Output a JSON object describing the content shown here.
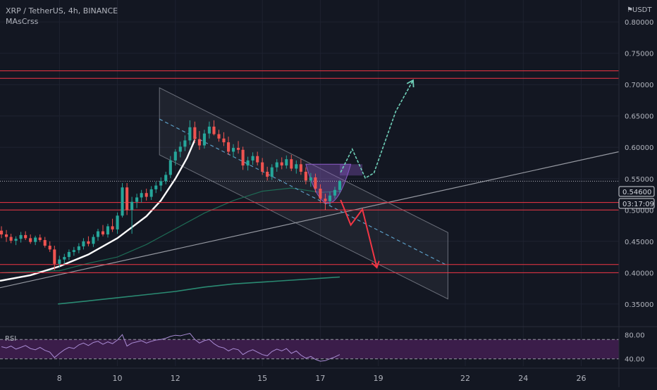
{
  "header": {
    "symbol_line": "XRP / TetherUS, 4h, BINANCE",
    "indicator_label": "MAsCrss",
    "rsi_label": "RSI"
  },
  "price_axis": {
    "currency": "USDT",
    "currency_icon": "flag-icon",
    "current_price": "0.54600",
    "countdown": "03:17:09"
  },
  "colors": {
    "background": "#131722",
    "grid": "#1e2230",
    "up": "#26a69a",
    "down": "#ef5350",
    "level_line": "#f23645",
    "projection_up": "#6fcfb8",
    "projection_down": "#f23645",
    "curve": "#ffffff",
    "rsi_fill": "#3b1d4a"
  },
  "chart_data": [
    {
      "type": "candlestick",
      "title": "XRP / TetherUS, 4h, BINANCE",
      "indicator": "MAsCrss",
      "y_ticks": [
        "0.80000",
        "0.75000",
        "0.70000",
        "0.65000",
        "0.60000",
        "0.55000",
        "0.50000",
        "0.45000",
        "0.40000",
        "0.35000"
      ],
      "x_ticks": [
        "8",
        "10",
        "12",
        "15",
        "17",
        "19",
        "22",
        "24",
        "26"
      ],
      "ylim": [
        0.315,
        0.835
      ],
      "x_range_days": [
        5.95,
        27.3
      ],
      "candle_interval_days": 0.1667,
      "last_price": 0.546,
      "candles": [
        [
          6.0,
          0.467,
          0.474,
          0.455,
          0.461
        ],
        [
          6.17,
          0.461,
          0.468,
          0.449,
          0.457
        ],
        [
          6.33,
          0.457,
          0.462,
          0.447,
          0.451
        ],
        [
          6.5,
          0.451,
          0.458,
          0.444,
          0.454
        ],
        [
          6.67,
          0.454,
          0.465,
          0.448,
          0.46
        ],
        [
          6.83,
          0.46,
          0.466,
          0.452,
          0.455
        ],
        [
          7.0,
          0.455,
          0.461,
          0.446,
          0.449
        ],
        [
          7.17,
          0.449,
          0.459,
          0.444,
          0.456
        ],
        [
          7.33,
          0.456,
          0.461,
          0.449,
          0.452
        ],
        [
          7.5,
          0.452,
          0.457,
          0.44,
          0.443
        ],
        [
          7.67,
          0.443,
          0.45,
          0.433,
          0.437
        ],
        [
          7.83,
          0.437,
          0.443,
          0.404,
          0.414
        ],
        [
          8.0,
          0.414,
          0.427,
          0.408,
          0.421
        ],
        [
          8.17,
          0.421,
          0.43,
          0.414,
          0.425
        ],
        [
          8.33,
          0.425,
          0.437,
          0.42,
          0.433
        ],
        [
          8.5,
          0.433,
          0.441,
          0.427,
          0.436
        ],
        [
          8.67,
          0.436,
          0.447,
          0.431,
          0.442
        ],
        [
          8.83,
          0.442,
          0.455,
          0.437,
          0.45
        ],
        [
          9.0,
          0.45,
          0.458,
          0.442,
          0.446
        ],
        [
          9.17,
          0.446,
          0.461,
          0.441,
          0.457
        ],
        [
          9.33,
          0.457,
          0.47,
          0.451,
          0.466
        ],
        [
          9.5,
          0.466,
          0.476,
          0.458,
          0.461
        ],
        [
          9.67,
          0.461,
          0.478,
          0.456,
          0.474
        ],
        [
          9.83,
          0.474,
          0.486,
          0.465,
          0.469
        ],
        [
          10.0,
          0.469,
          0.496,
          0.462,
          0.491
        ],
        [
          10.17,
          0.491,
          0.543,
          0.488,
          0.536
        ],
        [
          10.33,
          0.536,
          0.543,
          0.492,
          0.5
        ],
        [
          10.5,
          0.5,
          0.521,
          0.462,
          0.513
        ],
        [
          10.67,
          0.513,
          0.526,
          0.503,
          0.52
        ],
        [
          10.83,
          0.52,
          0.532,
          0.512,
          0.527
        ],
        [
          11.0,
          0.527,
          0.534,
          0.515,
          0.521
        ],
        [
          11.17,
          0.521,
          0.538,
          0.516,
          0.533
        ],
        [
          11.33,
          0.533,
          0.545,
          0.527,
          0.539
        ],
        [
          11.5,
          0.539,
          0.552,
          0.53,
          0.546
        ],
        [
          11.67,
          0.546,
          0.561,
          0.541,
          0.556
        ],
        [
          11.83,
          0.556,
          0.586,
          0.551,
          0.579
        ],
        [
          12.0,
          0.579,
          0.597,
          0.571,
          0.593
        ],
        [
          12.17,
          0.593,
          0.609,
          0.584,
          0.601
        ],
        [
          12.33,
          0.601,
          0.619,
          0.594,
          0.611
        ],
        [
          12.5,
          0.611,
          0.643,
          0.604,
          0.632
        ],
        [
          12.67,
          0.632,
          0.641,
          0.607,
          0.613
        ],
        [
          12.83,
          0.613,
          0.626,
          0.596,
          0.603
        ],
        [
          13.0,
          0.603,
          0.628,
          0.598,
          0.622
        ],
        [
          13.17,
          0.622,
          0.641,
          0.614,
          0.633
        ],
        [
          13.33,
          0.633,
          0.643,
          0.619,
          0.621
        ],
        [
          13.5,
          0.621,
          0.628,
          0.609,
          0.614
        ],
        [
          13.67,
          0.614,
          0.624,
          0.602,
          0.608
        ],
        [
          13.83,
          0.608,
          0.617,
          0.588,
          0.593
        ],
        [
          14.0,
          0.593,
          0.605,
          0.584,
          0.599
        ],
        [
          14.17,
          0.599,
          0.61,
          0.59,
          0.596
        ],
        [
          14.33,
          0.596,
          0.601,
          0.564,
          0.571
        ],
        [
          14.5,
          0.571,
          0.585,
          0.563,
          0.579
        ],
        [
          14.67,
          0.579,
          0.592,
          0.572,
          0.586
        ],
        [
          14.83,
          0.586,
          0.593,
          0.571,
          0.576
        ],
        [
          15.0,
          0.576,
          0.583,
          0.556,
          0.561
        ],
        [
          15.17,
          0.561,
          0.569,
          0.547,
          0.553
        ],
        [
          15.33,
          0.553,
          0.573,
          0.548,
          0.568
        ],
        [
          15.5,
          0.568,
          0.581,
          0.561,
          0.576
        ],
        [
          15.67,
          0.576,
          0.584,
          0.565,
          0.571
        ],
        [
          15.83,
          0.571,
          0.587,
          0.566,
          0.581
        ],
        [
          16.0,
          0.581,
          0.588,
          0.562,
          0.566
        ],
        [
          16.17,
          0.566,
          0.579,
          0.558,
          0.573
        ],
        [
          16.33,
          0.573,
          0.581,
          0.556,
          0.561
        ],
        [
          16.5,
          0.561,
          0.568,
          0.541,
          0.547
        ],
        [
          16.67,
          0.547,
          0.559,
          0.537,
          0.552
        ],
        [
          16.83,
          0.552,
          0.558,
          0.528,
          0.534
        ],
        [
          17.0,
          0.534,
          0.541,
          0.511,
          0.518
        ],
        [
          17.17,
          0.518,
          0.526,
          0.5,
          0.514
        ],
        [
          17.33,
          0.514,
          0.529,
          0.507,
          0.523
        ],
        [
          17.5,
          0.523,
          0.537,
          0.518,
          0.532
        ],
        [
          17.67,
          0.532,
          0.548,
          0.527,
          0.546
        ]
      ],
      "lines": [
        {
          "name": "moving-average-short",
          "color": "#1e6b55",
          "points": [
            [
              6.0,
              0.4
            ],
            [
              7.0,
              0.402
            ],
            [
              8.0,
              0.403
            ],
            [
              9.0,
              0.415
            ],
            [
              10.0,
              0.425
            ],
            [
              11.0,
              0.445
            ],
            [
              12.0,
              0.47
            ],
            [
              13.0,
              0.495
            ],
            [
              14.0,
              0.515
            ],
            [
              15.0,
              0.53
            ],
            [
              16.0,
              0.535
            ],
            [
              17.0,
              0.528
            ],
            [
              17.67,
              0.53
            ]
          ]
        },
        {
          "name": "moving-average-long",
          "color": "#2a8a72",
          "points": [
            [
              7.95,
              0.35
            ],
            [
              9.0,
              0.355
            ],
            [
              10.0,
              0.36
            ],
            [
              11.0,
              0.365
            ],
            [
              12.0,
              0.37
            ],
            [
              13.0,
              0.377
            ],
            [
              14.0,
              0.382
            ],
            [
              15.0,
              0.385
            ],
            [
              16.0,
              0.388
            ],
            [
              17.0,
              0.391
            ],
            [
              17.67,
              0.393
            ]
          ]
        },
        {
          "name": "parabolic-curve",
          "color": "#ffffff",
          "points": [
            [
              5.95,
              0.387
            ],
            [
              7.0,
              0.396
            ],
            [
              8.0,
              0.41
            ],
            [
              9.0,
              0.429
            ],
            [
              10.0,
              0.455
            ],
            [
              11.0,
              0.49
            ],
            [
              11.5,
              0.515
            ],
            [
              12.0,
              0.55
            ],
            [
              12.4,
              0.583
            ],
            [
              12.67,
              0.612
            ]
          ]
        },
        {
          "name": "ascending-trendline",
          "color": "#9598a1",
          "points": [
            [
              5.95,
              0.376
            ],
            [
              27.3,
              0.593
            ]
          ]
        },
        {
          "name": "channel-midline",
          "color": "#5b9cc4",
          "points": [
            [
              11.45,
              0.645
            ],
            [
              21.4,
              0.411
            ]
          ]
        }
      ],
      "channel": {
        "top": [
          [
            11.45,
            0.695
          ],
          [
            21.4,
            0.464
          ]
        ],
        "bottom": [
          [
            11.45,
            0.588
          ],
          [
            21.4,
            0.358
          ]
        ]
      },
      "horizontal_levels": [
        0.722,
        0.71,
        0.512,
        0.5,
        0.413,
        0.4
      ],
      "cup": {
        "x": [
          16.5,
          18.05
        ],
        "y": [
          0.509,
          0.573
        ]
      },
      "cup_fill": {
        "x": [
          17.67,
          18.45
        ],
        "y": [
          0.555,
          0.573
        ]
      },
      "projection_up": {
        "points": [
          [
            17.7,
            0.56
          ],
          [
            18.1,
            0.597
          ],
          [
            18.55,
            0.551
          ],
          [
            18.85,
            0.559
          ],
          [
            19.6,
            0.657
          ],
          [
            20.2,
            0.707
          ]
        ]
      },
      "projection_down": {
        "points": [
          [
            17.7,
            0.516
          ],
          [
            18.05,
            0.476
          ],
          [
            18.45,
            0.501
          ],
          [
            18.95,
            0.408
          ]
        ]
      }
    },
    {
      "type": "line",
      "title": "RSI",
      "ylim": [
        28,
        92
      ],
      "y_ticks": [
        "80.00",
        "40.00"
      ],
      "bands": [
        72,
        40
      ],
      "values": [
        [
          6.0,
          60
        ],
        [
          6.17,
          58
        ],
        [
          6.33,
          61
        ],
        [
          6.5,
          56
        ],
        [
          6.67,
          59
        ],
        [
          6.83,
          62
        ],
        [
          7.0,
          57
        ],
        [
          7.17,
          55
        ],
        [
          7.33,
          59
        ],
        [
          7.5,
          54
        ],
        [
          7.67,
          51
        ],
        [
          7.83,
          42
        ],
        [
          8.0,
          49
        ],
        [
          8.17,
          55
        ],
        [
          8.33,
          59
        ],
        [
          8.5,
          57
        ],
        [
          8.67,
          63
        ],
        [
          8.83,
          66
        ],
        [
          9.0,
          62
        ],
        [
          9.17,
          67
        ],
        [
          9.33,
          69
        ],
        [
          9.5,
          64
        ],
        [
          9.67,
          68
        ],
        [
          9.83,
          65
        ],
        [
          10.0,
          71
        ],
        [
          10.17,
          80
        ],
        [
          10.33,
          61
        ],
        [
          10.5,
          66
        ],
        [
          10.67,
          68
        ],
        [
          10.83,
          70
        ],
        [
          11.0,
          66
        ],
        [
          11.17,
          69
        ],
        [
          11.33,
          71
        ],
        [
          11.5,
          72
        ],
        [
          11.67,
          74
        ],
        [
          11.83,
          77
        ],
        [
          12.0,
          79
        ],
        [
          12.17,
          78
        ],
        [
          12.33,
          80
        ],
        [
          12.5,
          82
        ],
        [
          12.67,
          72
        ],
        [
          12.83,
          66
        ],
        [
          13.0,
          70
        ],
        [
          13.17,
          72
        ],
        [
          13.33,
          65
        ],
        [
          13.5,
          60
        ],
        [
          13.67,
          58
        ],
        [
          13.83,
          53
        ],
        [
          14.0,
          57
        ],
        [
          14.17,
          55
        ],
        [
          14.33,
          47
        ],
        [
          14.5,
          52
        ],
        [
          14.67,
          55
        ],
        [
          14.83,
          51
        ],
        [
          15.0,
          47
        ],
        [
          15.17,
          45
        ],
        [
          15.33,
          52
        ],
        [
          15.5,
          56
        ],
        [
          15.67,
          53
        ],
        [
          15.83,
          57
        ],
        [
          16.0,
          49
        ],
        [
          16.17,
          53
        ],
        [
          16.33,
          46
        ],
        [
          16.5,
          41
        ],
        [
          16.67,
          44
        ],
        [
          16.83,
          39
        ],
        [
          17.0,
          36
        ],
        [
          17.17,
          37
        ],
        [
          17.33,
          40
        ],
        [
          17.5,
          43
        ],
        [
          17.67,
          47
        ]
      ]
    }
  ]
}
